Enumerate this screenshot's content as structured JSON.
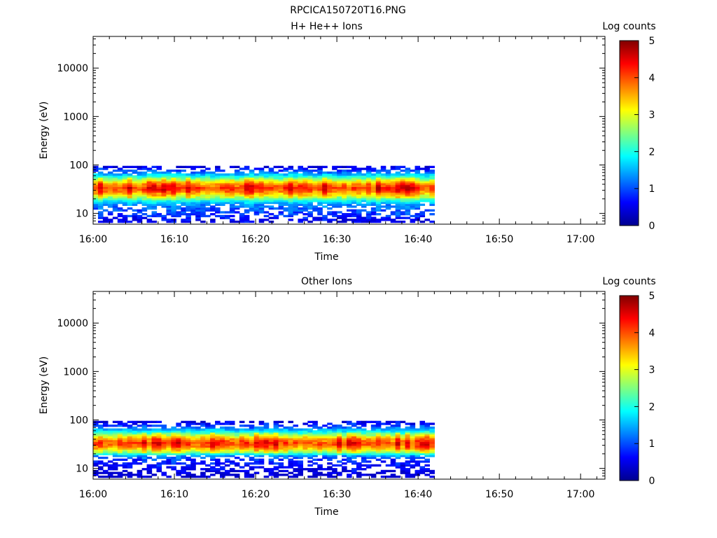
{
  "figure_title": "RPCICA150720T16.PNG",
  "chart_data": [
    {
      "type": "heatmap",
      "title": "H+ He++ Ions",
      "xlabel": "Time",
      "ylabel": "Energy (eV)",
      "x_ticks": [
        "16:00",
        "16:10",
        "16:20",
        "16:30",
        "16:40",
        "16:50",
        "17:00"
      ],
      "xlim": [
        "16:00",
        "17:03"
      ],
      "y_scale": "log",
      "y_ticks": [
        10,
        100,
        1000,
        10000
      ],
      "ylim": [
        6,
        45000
      ],
      "data_time_range": [
        "16:00",
        "16:42"
      ],
      "colorbar": {
        "label": "Log counts",
        "range": [
          0,
          5
        ],
        "ticks": [
          0,
          1,
          2,
          3,
          4,
          5
        ]
      },
      "energy_profile": {
        "energy_eV": [
          7,
          8.5,
          10,
          12,
          15,
          18,
          22,
          27,
          33,
          40,
          48,
          58,
          70,
          85,
          95
        ],
        "log_counts": [
          0.5,
          0.7,
          0.9,
          1.0,
          1.2,
          1.8,
          2.8,
          3.6,
          4.2,
          3.8,
          3.0,
          2.0,
          1.2,
          0.7,
          0.4
        ]
      }
    },
    {
      "type": "heatmap",
      "title": "Other Ions",
      "xlabel": "Time",
      "ylabel": "Energy (eV)",
      "x_ticks": [
        "16:00",
        "16:10",
        "16:20",
        "16:30",
        "16:40",
        "16:50",
        "17:00"
      ],
      "xlim": [
        "16:00",
        "17:03"
      ],
      "y_scale": "log",
      "y_ticks": [
        10,
        100,
        1000,
        10000
      ],
      "ylim": [
        6,
        45000
      ],
      "data_time_range": [
        "16:00",
        "16:42"
      ],
      "colorbar": {
        "label": "Log counts",
        "range": [
          0,
          5
        ],
        "ticks": [
          0,
          1,
          2,
          3,
          4,
          5
        ]
      },
      "energy_profile": {
        "energy_eV": [
          7,
          8.5,
          10,
          12,
          15,
          18,
          22,
          27,
          33,
          40,
          48,
          58,
          70,
          85,
          95
        ],
        "log_counts": [
          0.3,
          0.4,
          0.5,
          0.6,
          0.8,
          1.2,
          2.6,
          3.6,
          4.1,
          3.7,
          2.9,
          1.9,
          1.1,
          0.6,
          0.4
        ]
      }
    }
  ]
}
